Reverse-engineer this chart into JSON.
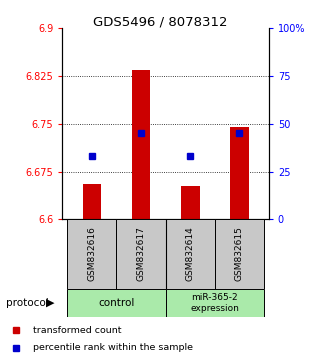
{
  "title": "GDS5496 / 8078312",
  "samples": [
    "GSM832616",
    "GSM832617",
    "GSM832614",
    "GSM832615"
  ],
  "baseline": 6.6,
  "red_values": [
    6.655,
    6.835,
    6.652,
    6.745
  ],
  "blue_percentiles": [
    33,
    45,
    33,
    45
  ],
  "ylim_left": [
    6.6,
    6.9
  ],
  "ylim_right": [
    0,
    100
  ],
  "yticks_left": [
    6.6,
    6.675,
    6.75,
    6.825,
    6.9
  ],
  "ytick_labels_left": [
    "6.6",
    "6.675",
    "6.75",
    "6.825",
    "6.9"
  ],
  "yticks_right": [
    0,
    25,
    50,
    75,
    100
  ],
  "ytick_labels_right": [
    "0",
    "25",
    "50",
    "75",
    "100%"
  ],
  "bar_color": "#CC0000",
  "blue_color": "#0000CC",
  "bar_width": 0.38,
  "legend_red": "transformed count",
  "legend_blue": "percentile rank within the sample",
  "gray_color": "#C8C8C8",
  "green_color": "#AAEAAA"
}
